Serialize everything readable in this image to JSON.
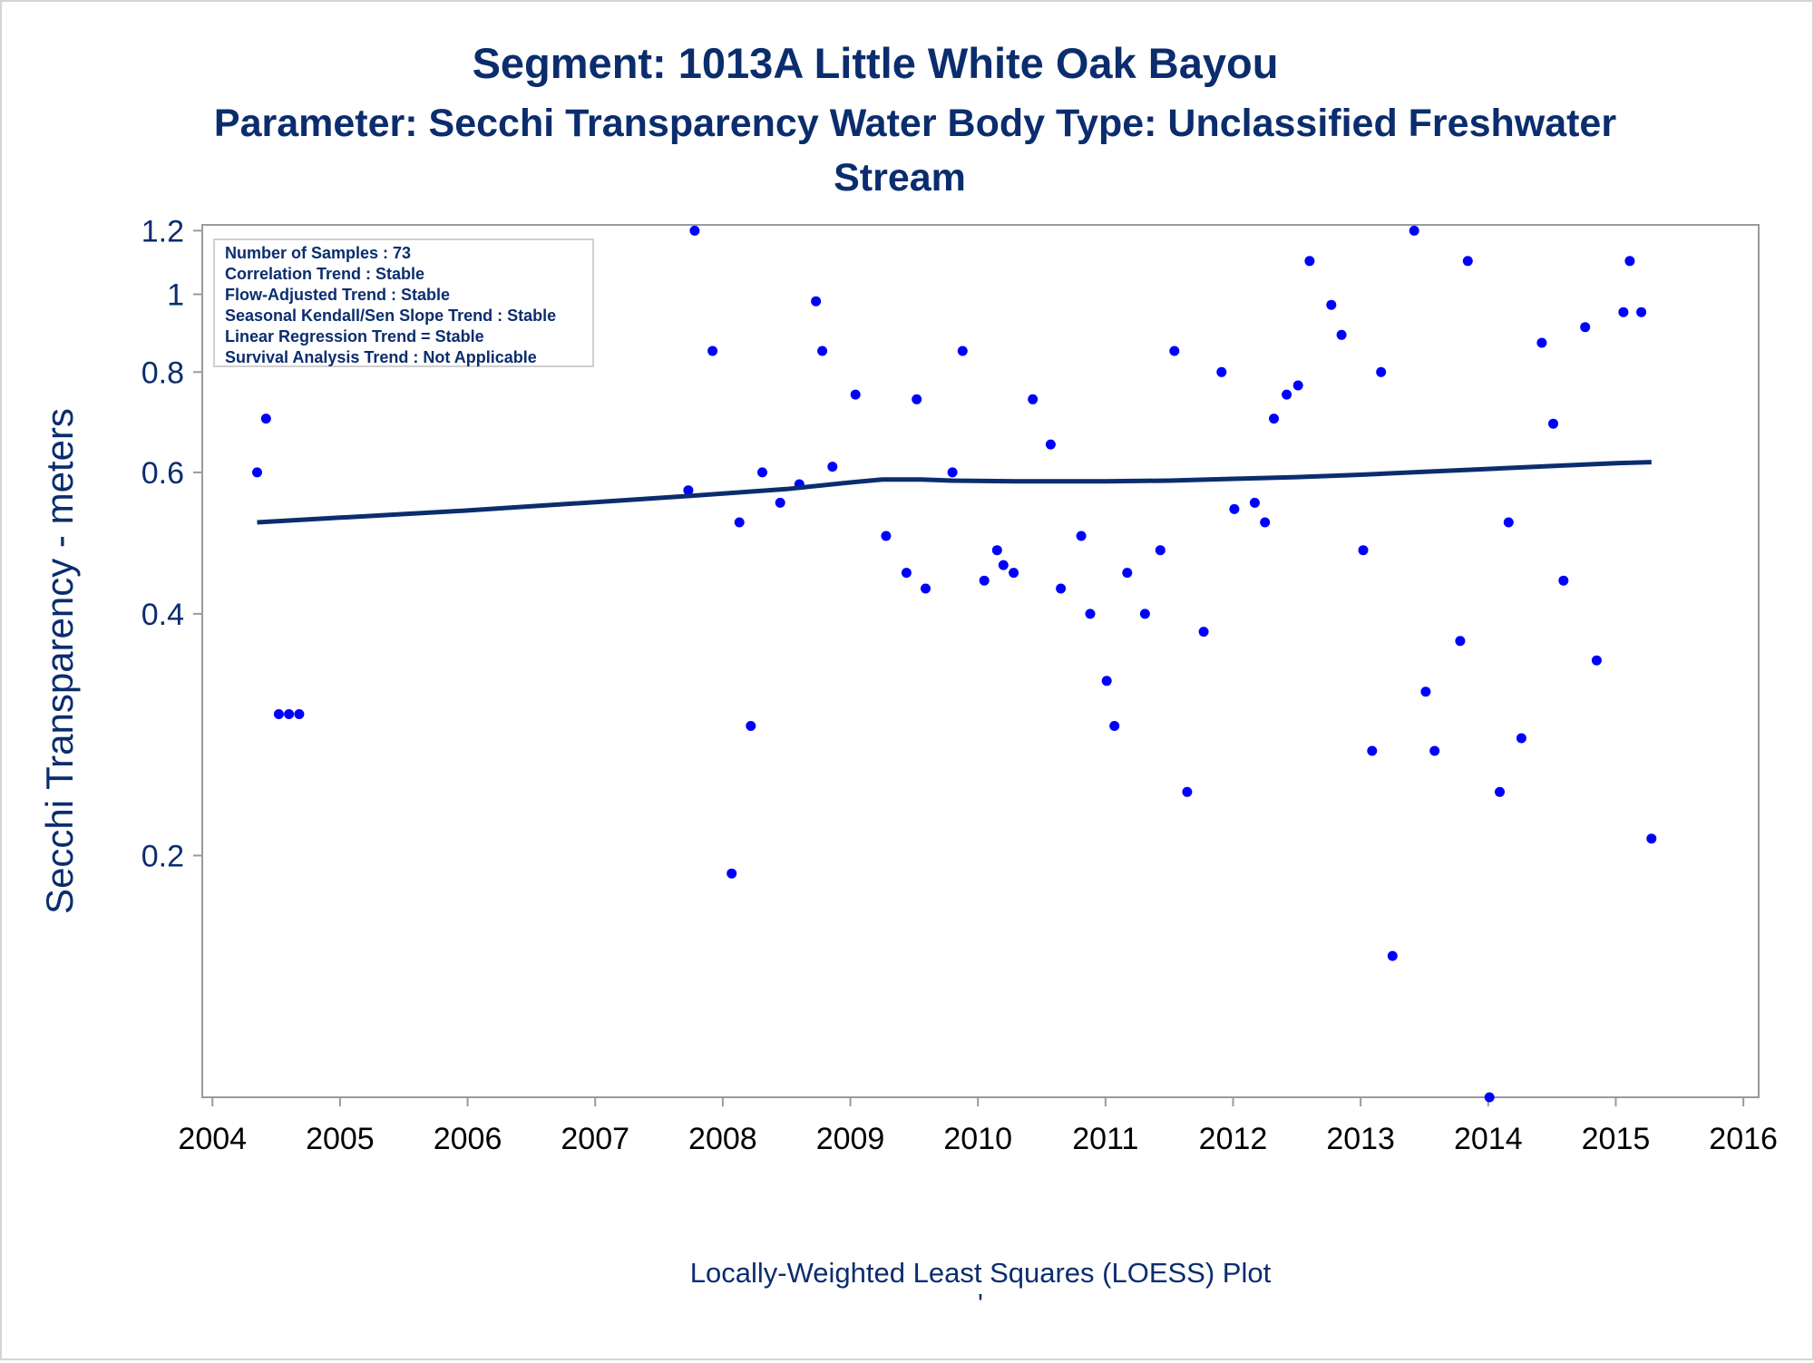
{
  "title": "Segment: 1013A  Little White Oak Bayou",
  "subtitle_line1": "Parameter: Secchi Transparency   Water Body Type: Unclassified Freshwater",
  "subtitle_line2": "Stream",
  "footnote": "Locally-Weighted Least Squares (LOESS) Plot",
  "footnote_mark": "'",
  "stats_box": [
    "Number of Samples : 73",
    "Correlation Trend : Stable",
    "Flow-Adjusted Trend : Stable",
    "Seasonal Kendall/Sen Slope Trend : Stable",
    "Linear Regression Trend = Stable",
    "Survival Analysis Trend : Not Applicable"
  ],
  "colors": {
    "text": "#0b2d6e",
    "points": "#0000ff",
    "trend_line": "#0b2d6e",
    "axis": "#9a9a9a"
  },
  "chart_data": {
    "type": "scatter",
    "ylabel": "Secchi Transparency - meters",
    "xlabel": "",
    "x_ticks": [
      2004,
      2005,
      2006,
      2007,
      2008,
      2009,
      2010,
      2011,
      2012,
      2013,
      2014,
      2015,
      2016
    ],
    "y_ticks": [
      0.2,
      0.4,
      0.6,
      0.8,
      1,
      1.2
    ],
    "y_tick_labels": [
      "0.2",
      "0.4",
      "0.6",
      "0.8",
      "1",
      "1.2"
    ],
    "y_scale": "log",
    "xlim": [
      2003.92,
      2016.12
    ],
    "ylim": [
      0.1,
      1.22
    ],
    "grid": false,
    "legend": "top-left",
    "series": [
      {
        "type": "scatter",
        "points": [
          [
            2004.35,
            0.6
          ],
          [
            2004.42,
            0.7
          ],
          [
            2004.52,
            0.3
          ],
          [
            2004.6,
            0.3
          ],
          [
            2004.68,
            0.3
          ],
          [
            2007.73,
            0.57
          ],
          [
            2007.78,
            1.2
          ],
          [
            2007.92,
            0.85
          ],
          [
            2008.07,
            0.19
          ],
          [
            2008.13,
            0.52
          ],
          [
            2008.22,
            0.29
          ],
          [
            2008.31,
            0.6
          ],
          [
            2008.45,
            0.55
          ],
          [
            2008.6,
            0.58
          ],
          [
            2008.73,
            0.98
          ],
          [
            2008.78,
            0.85
          ],
          [
            2008.86,
            0.61
          ],
          [
            2009.04,
            0.75
          ],
          [
            2009.28,
            0.5
          ],
          [
            2009.44,
            0.45
          ],
          [
            2009.52,
            0.74
          ],
          [
            2009.59,
            0.43
          ],
          [
            2009.8,
            0.6
          ],
          [
            2009.88,
            0.85
          ],
          [
            2010.05,
            0.44
          ],
          [
            2010.15,
            0.48
          ],
          [
            2010.2,
            0.46
          ],
          [
            2010.28,
            0.45
          ],
          [
            2010.43,
            0.74
          ],
          [
            2010.57,
            0.65
          ],
          [
            2010.65,
            0.43
          ],
          [
            2010.81,
            0.5
          ],
          [
            2010.88,
            0.4
          ],
          [
            2011.01,
            0.33
          ],
          [
            2011.07,
            0.29
          ],
          [
            2011.17,
            0.45
          ],
          [
            2011.31,
            0.4
          ],
          [
            2011.43,
            0.48
          ],
          [
            2011.54,
            0.85
          ],
          [
            2011.64,
            0.24
          ],
          [
            2011.77,
            0.38
          ],
          [
            2011.91,
            0.8
          ],
          [
            2012.01,
            0.54
          ],
          [
            2012.17,
            0.55
          ],
          [
            2012.25,
            0.52
          ],
          [
            2012.32,
            0.7
          ],
          [
            2012.42,
            0.75
          ],
          [
            2012.51,
            0.77
          ],
          [
            2012.6,
            1.1
          ],
          [
            2012.77,
            0.97
          ],
          [
            2012.85,
            0.89
          ],
          [
            2013.02,
            0.48
          ],
          [
            2013.09,
            0.27
          ],
          [
            2013.16,
            0.8
          ],
          [
            2013.25,
            0.15
          ],
          [
            2013.42,
            1.2
          ],
          [
            2013.51,
            0.32
          ],
          [
            2013.58,
            0.27
          ],
          [
            2013.78,
            0.37
          ],
          [
            2013.84,
            1.1
          ],
          [
            2014.01,
            0.1
          ],
          [
            2014.09,
            0.24
          ],
          [
            2014.16,
            0.52
          ],
          [
            2014.26,
            0.28
          ],
          [
            2014.42,
            0.87
          ],
          [
            2014.51,
            0.69
          ],
          [
            2014.59,
            0.44
          ],
          [
            2014.76,
            0.91
          ],
          [
            2014.85,
            0.35
          ],
          [
            2015.06,
            0.95
          ],
          [
            2015.11,
            1.1
          ],
          [
            2015.2,
            0.95
          ],
          [
            2015.28,
            0.21
          ]
        ]
      },
      {
        "type": "line",
        "name": "",
        "points": [
          [
            2004.35,
            0.52
          ],
          [
            2005.0,
            0.527
          ],
          [
            2006.0,
            0.538
          ],
          [
            2007.0,
            0.551
          ],
          [
            2007.75,
            0.561
          ],
          [
            2008.5,
            0.572
          ],
          [
            2009.0,
            0.583
          ],
          [
            2009.25,
            0.588
          ],
          [
            2009.55,
            0.588
          ],
          [
            2009.8,
            0.586
          ],
          [
            2010.3,
            0.585
          ],
          [
            2011.0,
            0.585
          ],
          [
            2011.5,
            0.586
          ],
          [
            2012.0,
            0.589
          ],
          [
            2012.5,
            0.592
          ],
          [
            2013.0,
            0.596
          ],
          [
            2013.5,
            0.601
          ],
          [
            2014.0,
            0.606
          ],
          [
            2014.5,
            0.611
          ],
          [
            2015.0,
            0.616
          ],
          [
            2015.28,
            0.618
          ]
        ]
      }
    ]
  }
}
